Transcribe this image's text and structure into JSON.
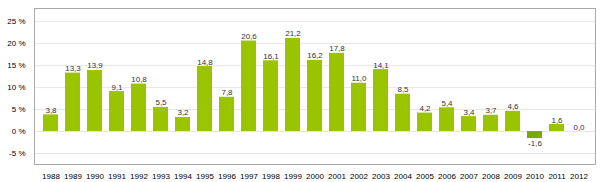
{
  "chart_data": {
    "type": "bar",
    "categories": [
      "1988",
      "1989",
      "1990",
      "1991",
      "1992",
      "1993",
      "1994",
      "1995",
      "1996",
      "1997",
      "1998",
      "1999",
      "2000",
      "2001",
      "2002",
      "2003",
      "2004",
      "2005",
      "2006",
      "2007",
      "2008",
      "2009",
      "2010",
      "2011",
      "2012"
    ],
    "values": [
      3.8,
      13.3,
      13.9,
      9.1,
      10.8,
      5.5,
      3.2,
      14.8,
      7.8,
      20.6,
      16.1,
      21.2,
      16.2,
      17.8,
      11.0,
      14.1,
      8.5,
      4.2,
      5.4,
      3.4,
      3.7,
      4.6,
      -1.6,
      1.6,
      0.0
    ],
    "value_labels": [
      "3,8",
      "13,3",
      "13,9",
      "9,1",
      "10,8",
      "5,5",
      "3,2",
      "14,8",
      "7,8",
      "20,6",
      "16,1",
      "21,2",
      "16,2",
      "17,8",
      "11,0",
      "14,1",
      "8,5",
      "4,2",
      "5,4",
      "3,4",
      "3,7",
      "4,6",
      "-1,6",
      "1,6",
      "0,0"
    ],
    "colors": [
      "#9BC400",
      "#9BC400",
      "#9BC400",
      "#9BC400",
      "#9BC400",
      "#9BC400",
      "#9BC400",
      "#9BC400",
      "#9BC400",
      "#9BC400",
      "#9BC400",
      "#9BC400",
      "#9BC400",
      "#9BC400",
      "#9BC400",
      "#9BC400",
      "#9BC400",
      "#9BC400",
      "#9BC400",
      "#9BC400",
      "#9BC400",
      "#9BC400",
      "#7aaa00",
      "#9BC400",
      "#9BC400"
    ],
    "ylim": [
      -7.5,
      28
    ],
    "yticks": [
      {
        "value": -5,
        "label": "-5 %"
      },
      {
        "value": 0,
        "label": "0 %"
      },
      {
        "value": 5,
        "label": "5 %"
      },
      {
        "value": 10,
        "label": "10 %"
      },
      {
        "value": 15,
        "label": "15 %"
      },
      {
        "value": 20,
        "label": "20 %"
      },
      {
        "value": 25,
        "label": "25 %"
      }
    ],
    "grid": true,
    "data_labels": true
  }
}
